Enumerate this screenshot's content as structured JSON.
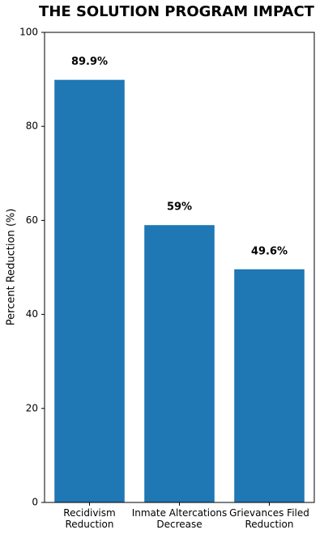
{
  "chart_data": {
    "type": "bar",
    "title": "THE SOLUTION PROGRAM IMPACT",
    "y_label": "Percent Reduction (%)",
    "categories": [
      "Recidivism\nReduction",
      "Inmate Altercations\nDecrease",
      "Grievances Filed\nReduction"
    ],
    "values": [
      89.9,
      59,
      49.6
    ],
    "value_labels": [
      "89.9%",
      "59%",
      "49.6%"
    ],
    "color": "#1f77b4",
    "ylim": [
      0,
      100
    ],
    "yticks": [
      0,
      20,
      40,
      60,
      80,
      100
    ],
    "grid": false
  }
}
